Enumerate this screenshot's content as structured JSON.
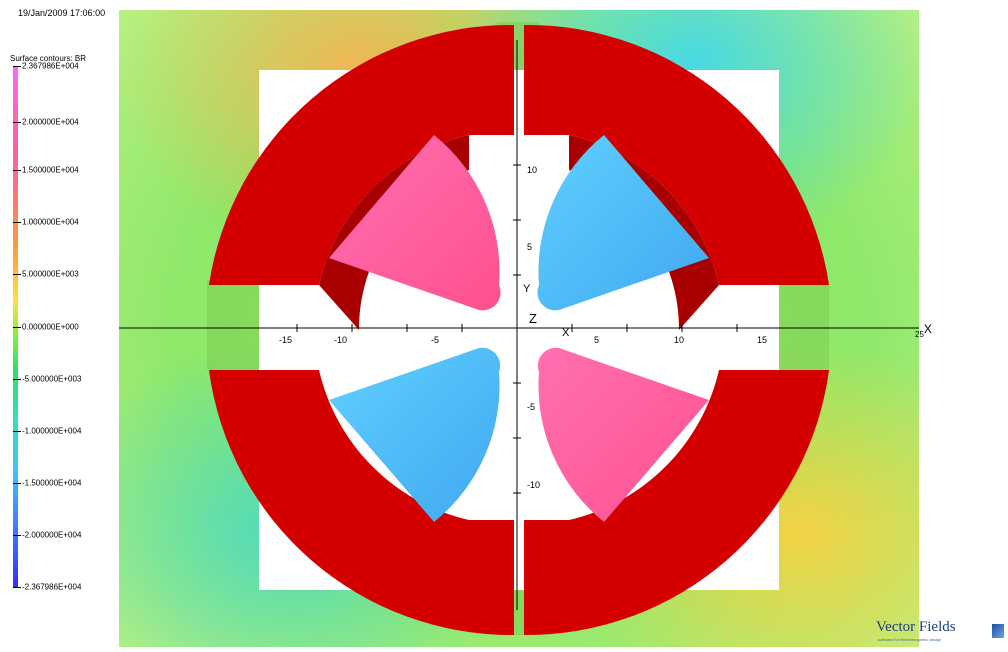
{
  "header": {
    "timestamp": "19/Jan/2009 17:06:00"
  },
  "legend": {
    "title": "Surface contours: BR",
    "labels": [
      "2.367986E+004",
      "2.000000E+004",
      "1.500000E+004",
      "1.000000E+004",
      "5.000000E+003",
      "0.000000E+000",
      "-5.000000E+003",
      "-1.000000E+004",
      "-1.500000E+004",
      "-2.000000E+004",
      "-2.367986E+004"
    ]
  },
  "axes": {
    "x_label": "X",
    "y_label": "Y",
    "z_label": "Z",
    "x_end_number": "25",
    "x_ticks": [
      "-15",
      "-10",
      "-5",
      "5",
      "10",
      "15"
    ],
    "y_ticks": [
      "10",
      "5",
      "-5",
      "-10"
    ]
  },
  "branding": {
    "name": "Vector Fields",
    "tagline": "software for electromagnetic design"
  },
  "colors": {
    "coil": "#d40000",
    "coil_dark": "#a80000",
    "pole_pink": "#ff5fa0",
    "pole_blue": "#55c8f5",
    "field_green": "#8ee86a"
  }
}
